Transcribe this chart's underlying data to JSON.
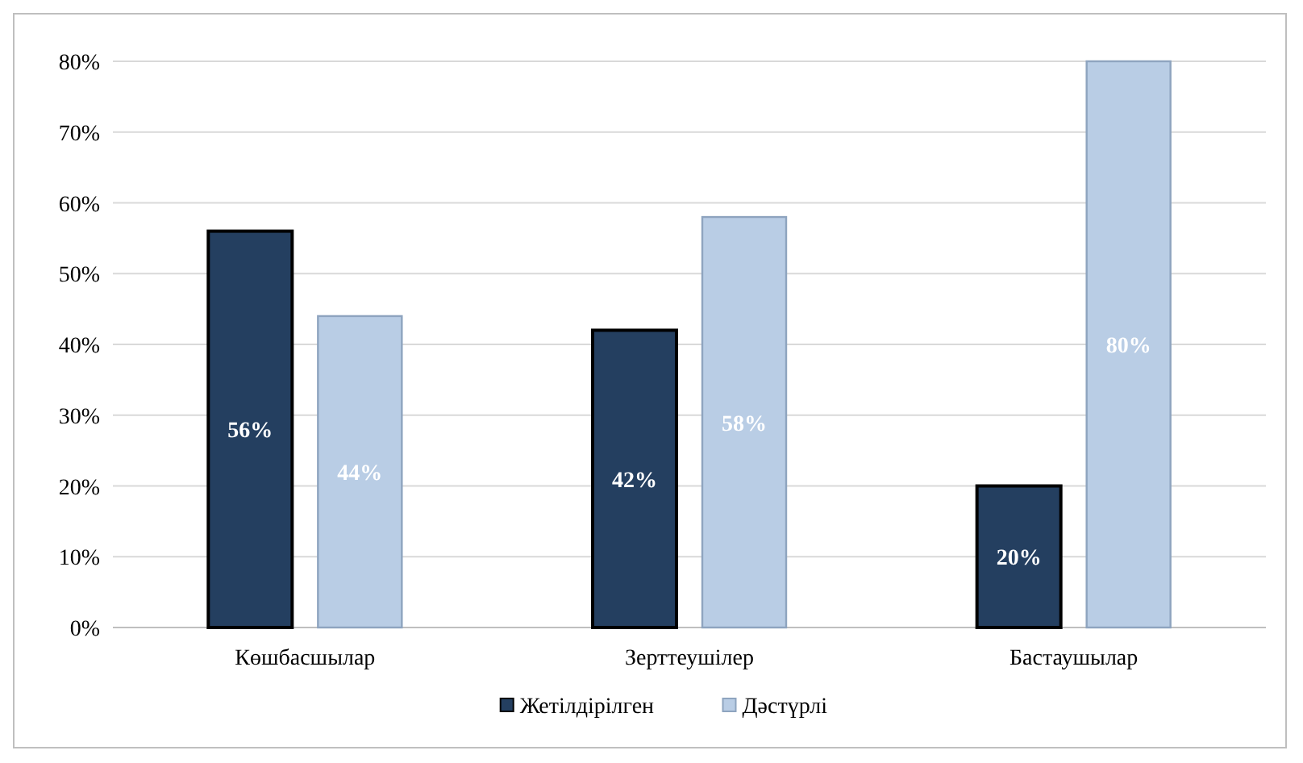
{
  "chart_data": {
    "type": "bar",
    "categories": [
      "Көшбасшылар",
      "Зерттеушілер",
      "Бастаушылар"
    ],
    "series": [
      {
        "name": "Жетілдірілген",
        "color": "#243f60",
        "values": [
          56,
          42,
          20
        ],
        "value_labels": [
          "56%",
          "42%",
          "20%"
        ]
      },
      {
        "name": "Дәстүрлі",
        "color": "#b9cde5",
        "values": [
          44,
          58,
          80
        ],
        "value_labels": [
          "44%",
          "58%",
          "80%"
        ]
      }
    ],
    "ylim": [
      0,
      80
    ],
    "yticks": [
      {
        "value": 0,
        "label": "0%"
      },
      {
        "value": 10,
        "label": "10%"
      },
      {
        "value": 20,
        "label": "20%"
      },
      {
        "value": 30,
        "label": "30%"
      },
      {
        "value": 40,
        "label": "40%"
      },
      {
        "value": 50,
        "label": "50%"
      },
      {
        "value": 60,
        "label": "60%"
      },
      {
        "value": 70,
        "label": "70%"
      },
      {
        "value": 80,
        "label": "80%"
      }
    ],
    "grid": "y",
    "legend": "bottom"
  }
}
